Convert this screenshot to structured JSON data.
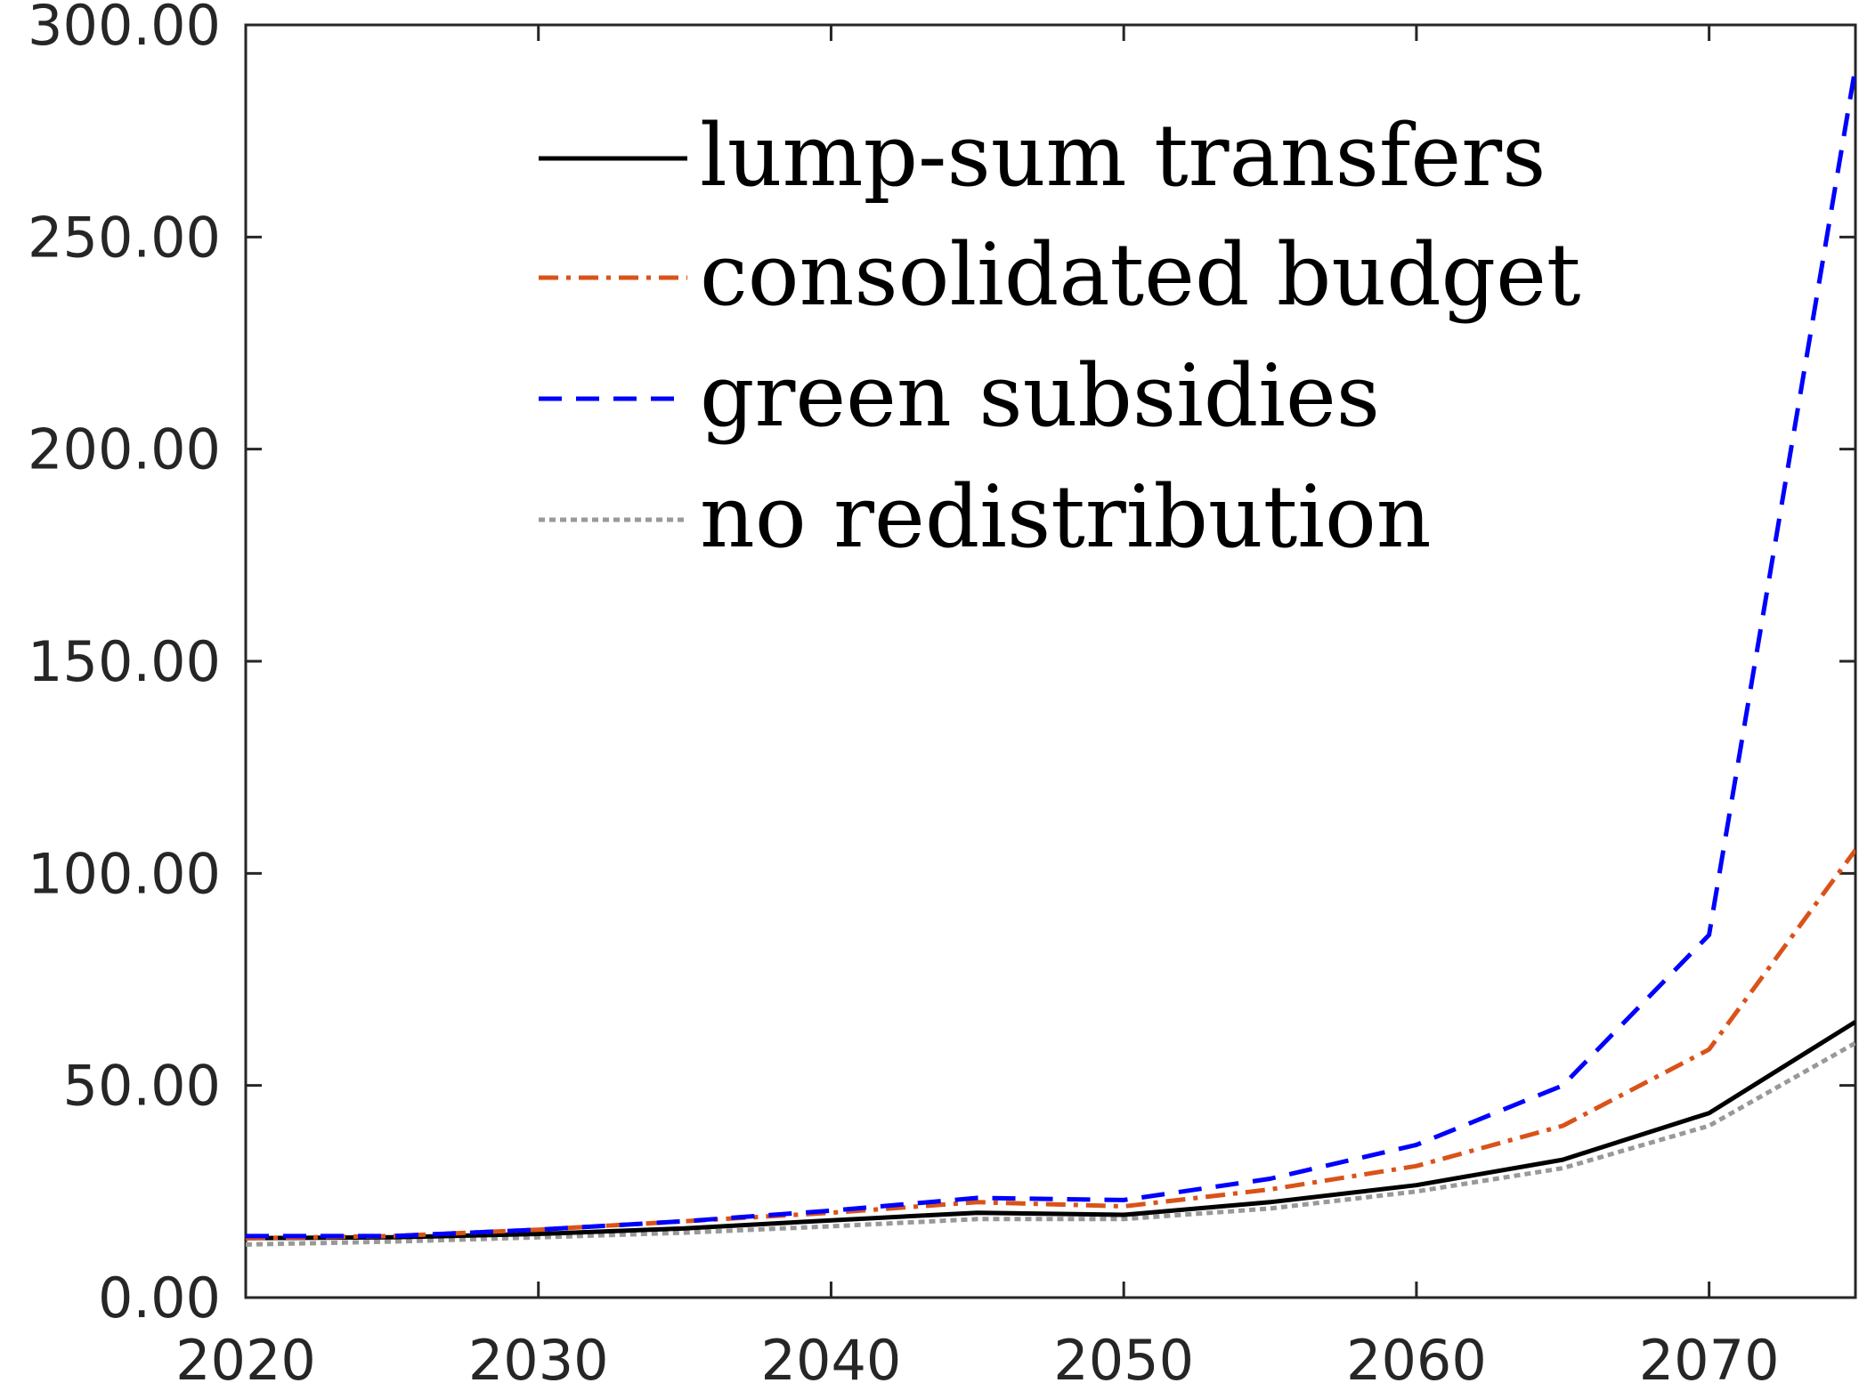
{
  "chart_data": {
    "type": "line",
    "x": [
      2020,
      2025,
      2030,
      2035,
      2040,
      2045,
      2050,
      2055,
      2060,
      2065,
      2070,
      2075
    ],
    "series": [
      {
        "name": "lump-sum transfers",
        "color": "#000000",
        "dash": "solid",
        "values": [
          14.0,
          14.2,
          15.0,
          16.3,
          18.2,
          20.0,
          19.5,
          22.5,
          26.5,
          32.5,
          43.5,
          65.0
        ]
      },
      {
        "name": "consolidated budget",
        "color": "#d95319",
        "dash": "dashdot",
        "values": [
          14.0,
          14.5,
          16.0,
          18.0,
          20.0,
          22.5,
          21.5,
          25.5,
          31.0,
          40.5,
          58.5,
          105.5
        ]
      },
      {
        "name": "green subsidies",
        "color": "#0000ff",
        "dash": "dashed",
        "values": [
          14.5,
          14.5,
          16.0,
          18.0,
          20.5,
          23.5,
          23.0,
          28.0,
          36.0,
          50.0,
          85.5,
          290.0
        ]
      },
      {
        "name": "no redistribution",
        "color": "#999999",
        "dash": "dotted",
        "values": [
          12.5,
          13.2,
          14.2,
          15.3,
          16.8,
          18.5,
          18.5,
          21.0,
          25.0,
          30.5,
          40.5,
          60.0
        ]
      }
    ],
    "xticks": [
      "2020",
      "2030",
      "2040",
      "2050",
      "2060",
      "2070"
    ],
    "xtick_values": [
      2020,
      2030,
      2040,
      2050,
      2060,
      2070
    ],
    "yticks": [
      "0.00",
      "50.00",
      "100.00",
      "150.00",
      "200.00",
      "250.00",
      "300.00"
    ],
    "ytick_values": [
      0,
      50,
      100,
      150,
      200,
      250,
      300
    ],
    "xlim": [
      2020,
      2075
    ],
    "ylim": [
      0,
      300
    ],
    "grid": false,
    "legend_position": "top-center",
    "title": "",
    "xlabel": "",
    "ylabel": ""
  }
}
